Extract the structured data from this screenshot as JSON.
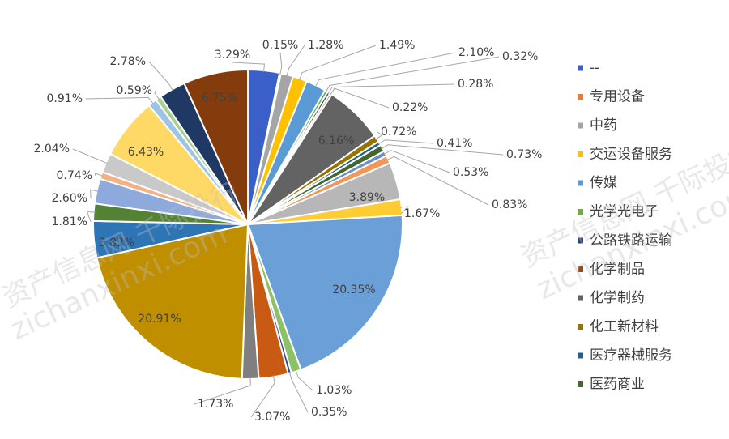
{
  "chart_data": {
    "type": "pie",
    "title": "",
    "legend_position": "right",
    "slices": [
      {
        "value": 3.29,
        "label": "3.29%",
        "color": "#3A5FC8"
      },
      {
        "value": 0.15,
        "label": "0.15%",
        "color": "#ED7D31"
      },
      {
        "value": 1.28,
        "label": "1.28%",
        "color": "#A5A5A5"
      },
      {
        "value": 1.49,
        "label": "1.49%",
        "color": "#FFC000"
      },
      {
        "value": 2.1,
        "label": "2.10%",
        "color": "#5B9BD5"
      },
      {
        "value": 0.32,
        "label": "0.32%",
        "color": "#70AD47"
      },
      {
        "value": 0.28,
        "label": "0.28%",
        "color": "#264478"
      },
      {
        "value": 0.22,
        "label": "0.22%",
        "color": "#9E480E"
      },
      {
        "value": 6.16,
        "label": "6.16%",
        "color": "#636363"
      },
      {
        "value": 0.72,
        "label": "0.72%",
        "color": "#997300"
      },
      {
        "value": 0.41,
        "label": "0.41%",
        "color": "#255E91"
      },
      {
        "value": 0.73,
        "label": "0.73%",
        "color": "#43682B"
      },
      {
        "value": 0.53,
        "label": "0.53%",
        "color": "#698ED0"
      },
      {
        "value": 0.83,
        "label": "0.83%",
        "color": "#F1975A"
      },
      {
        "value": 3.89,
        "label": "3.89%",
        "color": "#B7B7B7"
      },
      {
        "value": 1.67,
        "label": "1.67%",
        "color": "#FFCD33"
      },
      {
        "value": 20.35,
        "label": "20.35%",
        "color": "#6A9FD8"
      },
      {
        "value": 1.03,
        "label": "1.03%",
        "color": "#8CC168"
      },
      {
        "value": 0.35,
        "label": "0.35%",
        "color": "#2E4B8C"
      },
      {
        "value": 3.07,
        "label": "3.07%",
        "color": "#C85A14"
      },
      {
        "value": 1.73,
        "label": "1.73%",
        "color": "#7F7F7F"
      },
      {
        "value": 20.91,
        "label": "20.91%",
        "color": "#BF8F00"
      },
      {
        "value": 3.82,
        "label": "3.82%",
        "color": "#2E75B6"
      },
      {
        "value": 1.81,
        "label": "1.81%",
        "color": "#548235"
      },
      {
        "value": 2.6,
        "label": "2.60%",
        "color": "#8EA9DB"
      },
      {
        "value": 0.74,
        "label": "0.74%",
        "color": "#F4B183"
      },
      {
        "value": 2.04,
        "label": "2.04%",
        "color": "#C9C9C9"
      },
      {
        "value": 6.43,
        "label": "6.43%",
        "color": "#FFD966"
      },
      {
        "value": 0.91,
        "label": "0.91%",
        "color": "#9DC3E6"
      },
      {
        "value": 0.59,
        "label": "0.59%",
        "color": "#A9D18E"
      },
      {
        "value": 2.78,
        "label": "2.78%",
        "color": "#203864"
      },
      {
        "value": 6.75,
        "label": "6.75%",
        "color": "#843C0C"
      }
    ],
    "legend": [
      {
        "name": "--",
        "color": "#3A5FC8"
      },
      {
        "name": "专用设备",
        "color": "#ED7D31"
      },
      {
        "name": "中药",
        "color": "#A5A5A5"
      },
      {
        "name": "交运设备服务",
        "color": "#FFC000"
      },
      {
        "name": "传媒",
        "color": "#5B9BD5"
      },
      {
        "name": "光学光电子",
        "color": "#70AD47"
      },
      {
        "name": "公路铁路运输",
        "color": "#264478"
      },
      {
        "name": "化学制品",
        "color": "#9E480E"
      },
      {
        "name": "化学制药",
        "color": "#636363"
      },
      {
        "name": "化工新材料",
        "color": "#997300"
      },
      {
        "name": "医疗器械服务",
        "color": "#255E91"
      },
      {
        "name": "医药商业",
        "color": "#43682B"
      }
    ]
  },
  "watermark": {
    "cn": "资产信息网 千际投行",
    "en": "zichanxinxi.com"
  }
}
